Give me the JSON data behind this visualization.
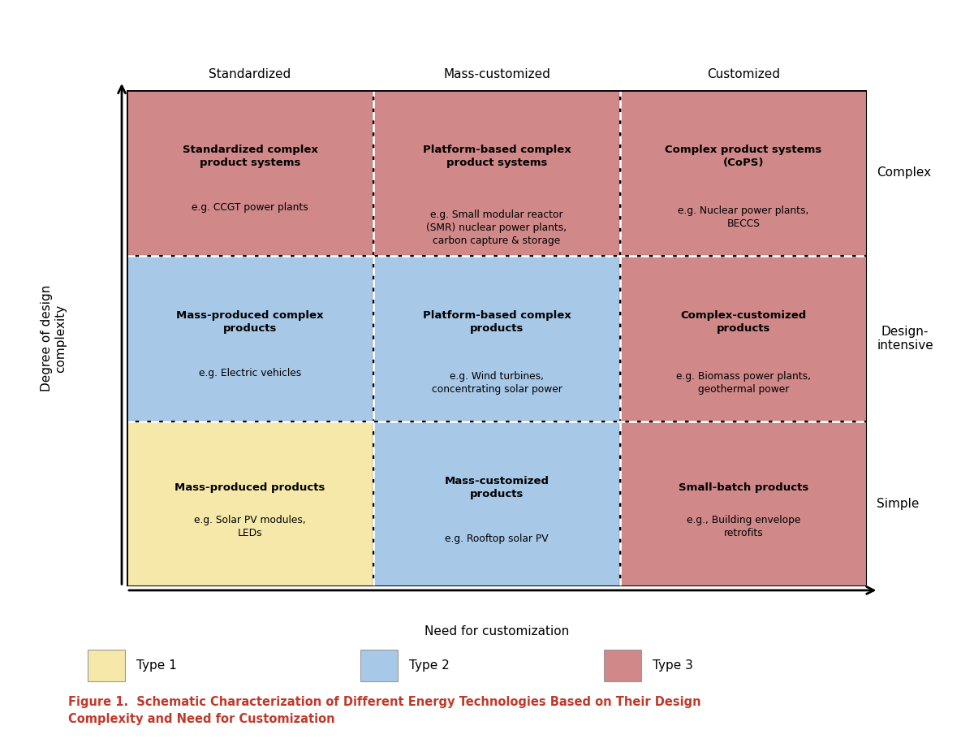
{
  "color_type1": "#F5E8A8",
  "color_type2": "#A8C8E8",
  "color_type3": "#D08888",
  "color_border": "#222222",
  "background": "#FFFFFF",
  "title_color": "#C0392B",
  "cells": [
    {
      "row": 2,
      "col": 0,
      "type": 1,
      "title": "Mass-produced products",
      "example": "e.g. Solar PV modules,\nLEDs"
    },
    {
      "row": 2,
      "col": 1,
      "type": 2,
      "title": "Mass-customized\nproducts",
      "example": "e.g. Rooftop solar PV"
    },
    {
      "row": 2,
      "col": 2,
      "type": 3,
      "title": "Small-batch products",
      "example": "e.g., Building envelope\nretrofits"
    },
    {
      "row": 1,
      "col": 0,
      "type": 2,
      "title": "Mass-produced complex\nproducts",
      "example": "e.g. Electric vehicles"
    },
    {
      "row": 1,
      "col": 1,
      "type": 2,
      "title": "Platform-based complex\nproducts",
      "example": "e.g. Wind turbines,\nconcentrating solar power"
    },
    {
      "row": 1,
      "col": 2,
      "type": 3,
      "title": "Complex-customized\nproducts",
      "example": "e.g. Biomass power plants,\ngeothermal power"
    },
    {
      "row": 0,
      "col": 0,
      "type": 3,
      "title": "Standardized complex\nproduct systems",
      "example": "e.g. CCGT power plants"
    },
    {
      "row": 0,
      "col": 1,
      "type": 3,
      "title": "Platform-based complex\nproduct systems",
      "example": "e.g. Small modular reactor\n(SMR) nuclear power plants,\ncarbon capture & storage"
    },
    {
      "row": 0,
      "col": 2,
      "type": 3,
      "title": "Complex product systems\n(CoPS)",
      "example": "e.g. Nuclear power plants,\nBECCS"
    }
  ],
  "col_labels": [
    "Standardized",
    "Mass-customized",
    "Customized"
  ],
  "row_labels": [
    "Complex",
    "Design-\nintensive",
    "Simple"
  ],
  "xlabel": "Need for customization",
  "ylabel": "Degree of design\ncomplexity",
  "legend_items": [
    "Type 1",
    "Type 2",
    "Type 3"
  ],
  "figure_caption_bold": "Figure 1.  Schematic Characterization of Different Energy Technologies Based on Their Design\nComplexity and Need for Customization"
}
